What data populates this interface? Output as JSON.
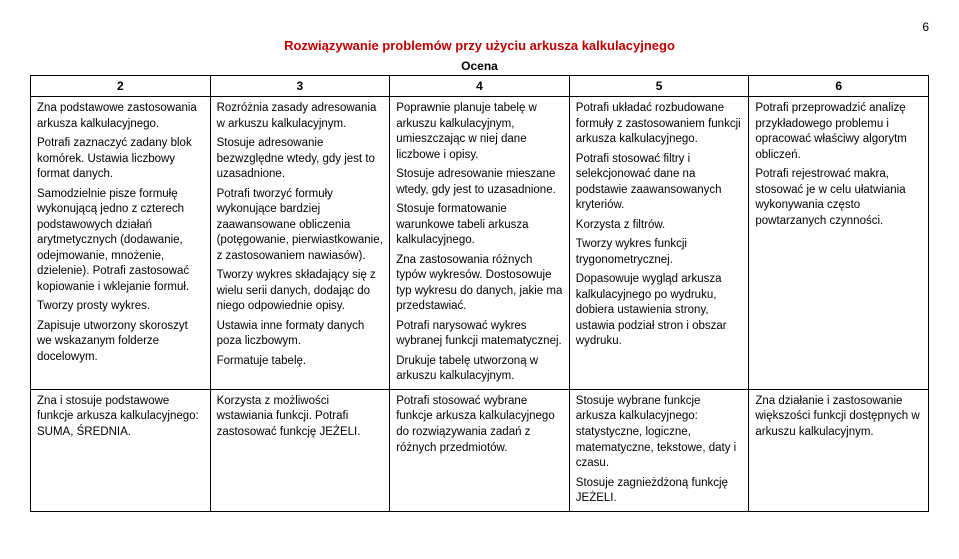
{
  "page_number": "6",
  "title": "Rozwiązywanie problemów przy użyciu arkusza kalkulacyjnego",
  "subtitle": "Ocena",
  "headers": [
    "2",
    "3",
    "4",
    "5",
    "6"
  ],
  "rows": [
    {
      "c1": [
        "Zna podstawowe zastosowania arkusza kalkulacyjnego.",
        "Potrafi zaznaczyć zadany blok komórek. Ustawia liczbowy format danych.",
        "Samodzielnie pisze formułę wykonującą jedno z czterech podstawowych działań arytmetycznych (dodawanie, odejmowanie, mnożenie, dzielenie). Potrafi zastosować kopiowanie i wklejanie formuł.",
        "Tworzy prosty wykres.",
        "Zapisuje utworzony skoroszyt we wskazanym folderze docelowym."
      ],
      "c2": [
        "Rozróżnia zasady adresowania w arkuszu kalkulacyjnym.",
        "Stosuje adresowanie bezwzględne wtedy, gdy jest to uzasadnione.",
        "Potrafi tworzyć formuły wykonujące bardziej zaawansowane obliczenia (potęgowanie, pierwiastkowanie, z zastosowaniem nawiasów).",
        "Tworzy wykres składający się z wielu serii danych, dodając do niego odpowiednie opisy.",
        "Ustawia inne formaty danych poza liczbowym.",
        "Formatuje tabelę."
      ],
      "c3": [
        "Poprawnie planuje tabelę w arkuszu kalkulacyjnym, umieszczając w niej dane liczbowe i opisy.",
        "Stosuje adresowanie mieszane wtedy, gdy jest to uzasadnione.",
        "Stosuje formatowanie warunkowe tabeli arkusza kalkulacyjnego.",
        "Zna zastosowania różnych typów wykresów. Dostosowuje typ wykresu do danych, jakie ma przedstawiać.",
        "Potrafi narysować wykres wybranej funkcji matematycznej.",
        "Drukuje tabelę utworzoną w arkuszu kalkulacyjnym."
      ],
      "c4": [
        "Potrafi układać rozbudowane formuły z zastosowaniem funkcji arkusza kalkulacyjnego.",
        "Potrafi stosować filtry i selekcjonować dane na podstawie zaawansowanych kryteriów.",
        "Korzysta z filtrów.",
        "Tworzy wykres funkcji trygonometrycznej.",
        "Dopasowuje wygląd arkusza kalkulacyjnego po wydruku, dobiera ustawienia strony, ustawia podział stron i obszar wydruku."
      ],
      "c5": [
        "Potrafi przeprowadzić analizę przykładowego problemu i opracować właściwy algorytm obliczeń.",
        "Potrafi rejestrować makra, stosować je w celu ułatwiania wykonywania często powtarzanych czynności."
      ]
    },
    {
      "c1": [
        "Zna i stosuje podstawowe funkcje arkusza kalkulacyjnego: SUMA, ŚREDNIA."
      ],
      "c2": [
        "Korzysta z możliwości wstawiania funkcji. Potrafi zastosować funkcję JEŻELI."
      ],
      "c3": [
        "Potrafi stosować wybrane funkcje arkusza kalkulacyjnego do rozwiązywania zadań z różnych przedmiotów."
      ],
      "c4": [
        "Stosuje wybrane funkcje arkusza kalkulacyjnego: statystyczne, logiczne, matematyczne, tekstowe, daty i czasu.",
        "Stosuje zagnieżdżoną funkcję JEŻELI."
      ],
      "c5": [
        "Zna działanie i zastosowanie większości funkcji dostępnych w arkuszu kalkulacyjnym."
      ]
    }
  ]
}
